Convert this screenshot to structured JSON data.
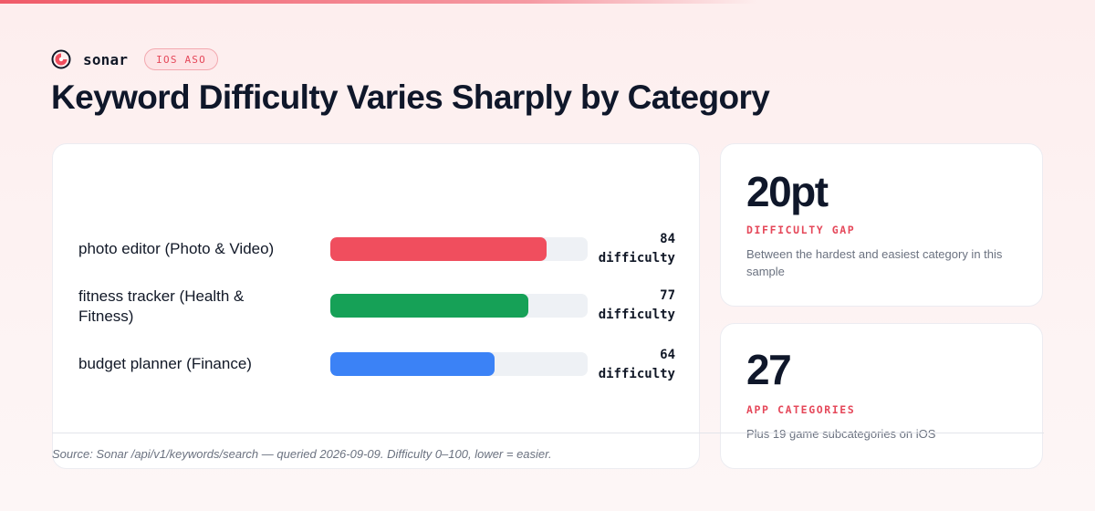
{
  "brand": {
    "name": "sonar",
    "logo_icon": "sonar-logo-icon",
    "tag": "IOS ASO"
  },
  "title": "Keyword Difficulty Varies Sharply by Category",
  "colors": {
    "accent": "#f04e5e",
    "green": "#16a157",
    "blue": "#3b82f6",
    "track": "#eef1f5"
  },
  "chart_data": {
    "type": "bar",
    "orientation": "horizontal",
    "xlim": [
      0,
      100
    ],
    "value_suffix": "difficulty",
    "bars": [
      {
        "category": "photo editor (Photo & Video)",
        "value": 84,
        "color": "#f04e5e"
      },
      {
        "category": "fitness tracker (Health & Fitness)",
        "value": 77,
        "color": "#16a157"
      },
      {
        "category": "budget planner (Finance)",
        "value": 64,
        "color": "#3b82f6"
      }
    ]
  },
  "stats": [
    {
      "value": "20pt",
      "label": "DIFFICULTY GAP",
      "description": "Between the hardest and easiest category in this sample"
    },
    {
      "value": "27",
      "label": "APP CATEGORIES",
      "description": "Plus 19 game subcategories on iOS"
    }
  ],
  "source": "Source: Sonar /api/v1/keywords/search — queried 2026-09-09. Difficulty 0–100, lower = easier."
}
